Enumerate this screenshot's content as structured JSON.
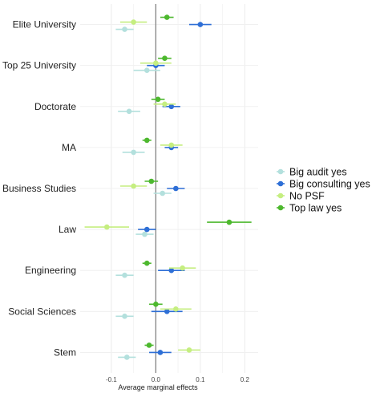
{
  "chart_data": {
    "type": "scatter",
    "subtype": "coefficient-dot-whisker",
    "xlabel": "Average marginal effects",
    "xlim": [
      -0.17,
      0.23
    ],
    "xticks": [
      -0.1,
      0.0,
      0.1,
      0.2
    ],
    "xtick_labels": [
      "-0.1",
      "0.0",
      "0.1",
      "0.2"
    ],
    "reference_line": 0,
    "grid": true,
    "legend_position": "right",
    "categories": [
      "Elite University",
      "Top 25 University",
      "Doctorate",
      "MA",
      "Business Studies",
      "Law",
      "Engineering",
      "Social Sciences",
      "Stem"
    ],
    "series": [
      {
        "name": "Big audit yes",
        "color": "#b3e0dd",
        "estimates": [
          -0.07,
          -0.02,
          -0.06,
          -0.05,
          0.015,
          -0.025,
          -0.07,
          -0.07,
          -0.065
        ],
        "ci_low": [
          -0.09,
          -0.05,
          -0.085,
          -0.075,
          -0.005,
          -0.045,
          -0.09,
          -0.09,
          -0.085
        ],
        "ci_high": [
          -0.05,
          0.01,
          -0.035,
          -0.025,
          0.035,
          -0.005,
          -0.05,
          -0.05,
          -0.045
        ]
      },
      {
        "name": "Big consulting yes",
        "color": "#2e6fd6",
        "estimates": [
          0.1,
          0.0,
          0.035,
          0.035,
          0.045,
          -0.02,
          0.035,
          0.025,
          0.01
        ],
        "ci_low": [
          0.075,
          -0.02,
          0.015,
          0.02,
          0.025,
          -0.04,
          0.005,
          -0.01,
          -0.015
        ],
        "ci_high": [
          0.125,
          0.02,
          0.055,
          0.05,
          0.065,
          0.0,
          0.065,
          0.06,
          0.035
        ]
      },
      {
        "name": "No PSF",
        "color": "#c5ee80",
        "estimates": [
          -0.05,
          0.0,
          0.02,
          0.035,
          -0.05,
          -0.11,
          0.06,
          0.045,
          0.075
        ],
        "ci_low": [
          -0.08,
          -0.035,
          -0.005,
          0.01,
          -0.08,
          -0.16,
          0.03,
          0.01,
          0.05
        ],
        "ci_high": [
          -0.02,
          0.035,
          0.045,
          0.06,
          -0.02,
          -0.06,
          0.09,
          0.08,
          0.1
        ]
      },
      {
        "name": "Top law yes",
        "color": "#4db82e",
        "estimates": [
          0.025,
          0.02,
          0.005,
          -0.02,
          -0.01,
          0.165,
          -0.02,
          0.0,
          -0.015
        ],
        "ci_low": [
          0.01,
          0.005,
          -0.01,
          -0.03,
          -0.025,
          0.115,
          -0.03,
          -0.015,
          -0.025
        ],
        "ci_high": [
          0.04,
          0.035,
          0.02,
          -0.01,
          0.005,
          0.215,
          -0.01,
          0.015,
          -0.005
        ]
      }
    ]
  }
}
